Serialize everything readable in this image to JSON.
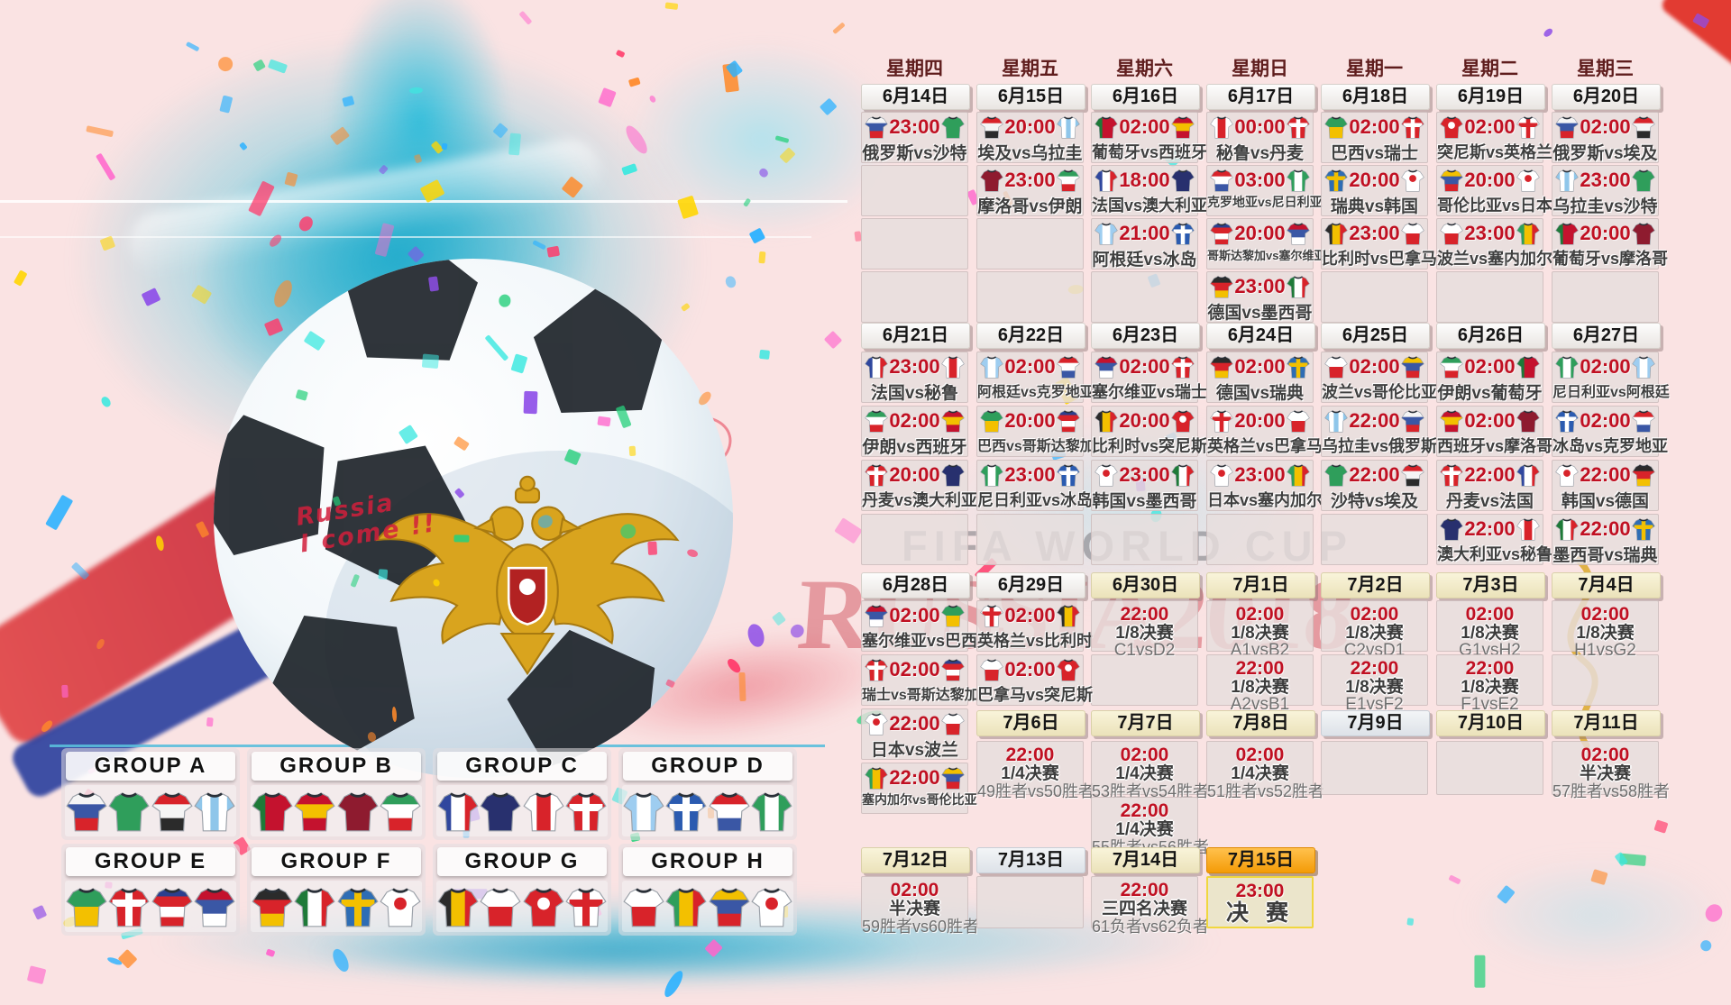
{
  "watermark": {
    "line1": "FIFA WORLD CUP",
    "line2": "RUSSIA2018"
  },
  "ball": {
    "handwriting": "Russia\nI come !!"
  },
  "weekdays": [
    "星期四",
    "星期五",
    "星期六",
    "星期日",
    "星期一",
    "星期二",
    "星期三"
  ],
  "sections": [
    {
      "dates": [
        {
          "col": 0,
          "label": "6月14日",
          "variant": "white"
        },
        {
          "col": 1,
          "label": "6月15日",
          "variant": "white"
        },
        {
          "col": 2,
          "label": "6月16日",
          "variant": "white"
        },
        {
          "col": 3,
          "label": "6月17日",
          "variant": "white"
        },
        {
          "col": 4,
          "label": "6月18日",
          "variant": "white"
        },
        {
          "col": 5,
          "label": "6月19日",
          "variant": "white"
        },
        {
          "col": 6,
          "label": "6月20日",
          "variant": "white"
        }
      ],
      "fill_rows": 4,
      "cells": [
        {
          "col": 0,
          "row": 0,
          "time": "23:00",
          "match": "俄罗斯vs沙特",
          "home": "俄罗斯",
          "away": "沙特"
        },
        {
          "col": 1,
          "row": 0,
          "time": "20:00",
          "match": "埃及vs乌拉圭",
          "home": "埃及",
          "away": "乌拉圭"
        },
        {
          "col": 1,
          "row": 1,
          "time": "23:00",
          "match": "摩洛哥vs伊朗",
          "home": "摩洛哥",
          "away": "伊朗"
        },
        {
          "col": 2,
          "row": 0,
          "time": "02:00",
          "match": "葡萄牙vs西班牙",
          "home": "葡萄牙",
          "away": "西班牙"
        },
        {
          "col": 2,
          "row": 1,
          "time": "18:00",
          "match": "法国vs澳大利亚",
          "home": "法国",
          "away": "澳大利亚"
        },
        {
          "col": 2,
          "row": 2,
          "time": "21:00",
          "match": "阿根廷vs冰岛",
          "home": "阿根廷",
          "away": "冰岛"
        },
        {
          "col": 3,
          "row": 0,
          "time": "00:00",
          "match": "秘鲁vs丹麦",
          "home": "秘鲁",
          "away": "丹麦"
        },
        {
          "col": 3,
          "row": 1,
          "time": "03:00",
          "match": "克罗地亚vs尼日利亚",
          "home": "克罗地亚",
          "away": "尼日利亚"
        },
        {
          "col": 3,
          "row": 2,
          "time": "20:00",
          "match": "哥斯达黎加vs塞尔维亚",
          "home": "哥斯达黎加",
          "away": "塞尔维亚"
        },
        {
          "col": 3,
          "row": 3,
          "time": "23:00",
          "match": "德国vs墨西哥",
          "home": "德国",
          "away": "墨西哥"
        },
        {
          "col": 4,
          "row": 0,
          "time": "02:00",
          "match": "巴西vs瑞士",
          "home": "巴西",
          "away": "瑞士"
        },
        {
          "col": 4,
          "row": 1,
          "time": "20:00",
          "match": "瑞典vs韩国",
          "home": "瑞典",
          "away": "韩国"
        },
        {
          "col": 4,
          "row": 2,
          "time": "23:00",
          "match": "比利时vs巴拿马",
          "home": "比利时",
          "away": "巴拿马"
        },
        {
          "col": 5,
          "row": 0,
          "time": "02:00",
          "match": "突尼斯vs英格兰",
          "home": "突尼斯",
          "away": "英格兰"
        },
        {
          "col": 5,
          "row": 1,
          "time": "20:00",
          "match": "哥伦比亚vs日本",
          "home": "哥伦比亚",
          "away": "日本"
        },
        {
          "col": 5,
          "row": 2,
          "time": "23:00",
          "match": "波兰vs塞内加尔",
          "home": "波兰",
          "away": "塞内加尔"
        },
        {
          "col": 6,
          "row": 0,
          "time": "02:00",
          "match": "俄罗斯vs埃及",
          "home": "俄罗斯",
          "away": "埃及"
        },
        {
          "col": 6,
          "row": 1,
          "time": "23:00",
          "match": "乌拉圭vs沙特",
          "home": "乌拉圭",
          "away": "沙特"
        },
        {
          "col": 6,
          "row": 2,
          "time": "20:00",
          "match": "葡萄牙vs摩洛哥",
          "home": "葡萄牙",
          "away": "摩洛哥"
        }
      ]
    },
    {
      "dates": [
        {
          "col": 0,
          "label": "6月21日",
          "variant": "white"
        },
        {
          "col": 1,
          "label": "6月22日",
          "variant": "white"
        },
        {
          "col": 2,
          "label": "6月23日",
          "variant": "white"
        },
        {
          "col": 3,
          "label": "6月24日",
          "variant": "white"
        },
        {
          "col": 4,
          "label": "6月25日",
          "variant": "white"
        },
        {
          "col": 5,
          "label": "6月26日",
          "variant": "white"
        },
        {
          "col": 6,
          "label": "6月27日",
          "variant": "white"
        }
      ],
      "fill_rows": 4,
      "cells": [
        {
          "col": 0,
          "row": 0,
          "time": "23:00",
          "match": "法国vs秘鲁",
          "home": "法国",
          "away": "秘鲁"
        },
        {
          "col": 0,
          "row": 1,
          "time": "02:00",
          "match": "伊朗vs西班牙",
          "home": "伊朗",
          "away": "西班牙"
        },
        {
          "col": 0,
          "row": 2,
          "time": "20:00",
          "match": "丹麦vs澳大利亚",
          "home": "丹麦",
          "away": "澳大利亚"
        },
        {
          "col": 1,
          "row": 0,
          "time": "02:00",
          "match": "阿根廷vs克罗地亚",
          "home": "阿根廷",
          "away": "克罗地亚"
        },
        {
          "col": 1,
          "row": 1,
          "time": "20:00",
          "match": "巴西vs哥斯达黎加",
          "home": "巴西",
          "away": "哥斯达黎加"
        },
        {
          "col": 1,
          "row": 2,
          "time": "23:00",
          "match": "尼日利亚vs冰岛",
          "home": "尼日利亚",
          "away": "冰岛"
        },
        {
          "col": 2,
          "row": 0,
          "time": "02:00",
          "match": "塞尔维亚vs瑞士",
          "home": "塞尔维亚",
          "away": "瑞士"
        },
        {
          "col": 2,
          "row": 1,
          "time": "20:00",
          "match": "比利时vs突尼斯",
          "home": "比利时",
          "away": "突尼斯"
        },
        {
          "col": 2,
          "row": 2,
          "time": "23:00",
          "match": "韩国vs墨西哥",
          "home": "韩国",
          "away": "墨西哥"
        },
        {
          "col": 3,
          "row": 0,
          "time": "02:00",
          "match": "德国vs瑞典",
          "home": "德国",
          "away": "瑞典"
        },
        {
          "col": 3,
          "row": 1,
          "time": "20:00",
          "match": "英格兰vs巴拿马",
          "home": "英格兰",
          "away": "巴拿马"
        },
        {
          "col": 3,
          "row": 2,
          "time": "23:00",
          "match": "日本vs塞内加尔",
          "home": "日本",
          "away": "塞内加尔"
        },
        {
          "col": 4,
          "row": 0,
          "time": "02:00",
          "match": "波兰vs哥伦比亚",
          "home": "波兰",
          "away": "哥伦比亚"
        },
        {
          "col": 4,
          "row": 1,
          "time": "22:00",
          "match": "乌拉圭vs俄罗斯",
          "home": "乌拉圭",
          "away": "俄罗斯"
        },
        {
          "col": 4,
          "row": 2,
          "time": "22:00",
          "match": "沙特vs埃及",
          "home": "沙特",
          "away": "埃及"
        },
        {
          "col": 5,
          "row": 0,
          "time": "02:00",
          "match": "伊朗vs葡萄牙",
          "home": "伊朗",
          "away": "葡萄牙"
        },
        {
          "col": 5,
          "row": 1,
          "time": "02:00",
          "match": "西班牙vs摩洛哥",
          "home": "西班牙",
          "away": "摩洛哥"
        },
        {
          "col": 5,
          "row": 2,
          "time": "22:00",
          "match": "丹麦vs法国",
          "home": "丹麦",
          "away": "法国"
        },
        {
          "col": 5,
          "row": 3,
          "time": "22:00",
          "match": "澳大利亚vs秘鲁",
          "home": "澳大利亚",
          "away": "秘鲁"
        },
        {
          "col": 6,
          "row": 0,
          "time": "02:00",
          "match": "尼日利亚vs阿根廷",
          "home": "尼日利亚",
          "away": "阿根廷"
        },
        {
          "col": 6,
          "row": 1,
          "time": "02:00",
          "match": "冰岛vs克罗地亚",
          "home": "冰岛",
          "away": "克罗地亚"
        },
        {
          "col": 6,
          "row": 2,
          "time": "22:00",
          "match": "韩国vs德国",
          "home": "韩国",
          "away": "德国"
        },
        {
          "col": 6,
          "row": 3,
          "time": "22:00",
          "match": "墨西哥vs瑞典",
          "home": "墨西哥",
          "away": "瑞典"
        }
      ]
    },
    {
      "dates": [
        {
          "col": 0,
          "label": "6月28日",
          "variant": "white"
        },
        {
          "col": 1,
          "label": "6月29日",
          "variant": "white"
        },
        {
          "col": 2,
          "label": "6月30日",
          "variant": "cream"
        },
        {
          "col": 3,
          "label": "7月1日",
          "variant": "cream"
        },
        {
          "col": 4,
          "label": "7月2日",
          "variant": "cream"
        },
        {
          "col": 5,
          "label": "7月3日",
          "variant": "cream"
        },
        {
          "col": 6,
          "label": "7月4日",
          "variant": "cream"
        }
      ],
      "fill_rows": 2,
      "cells": [
        {
          "col": 0,
          "row": 0,
          "time": "02:00",
          "match": "塞尔维亚vs巴西",
          "home": "塞尔维亚",
          "away": "巴西"
        },
        {
          "col": 0,
          "row": 1,
          "time": "02:00",
          "match": "瑞士vs哥斯达黎加",
          "home": "瑞士",
          "away": "哥斯达黎加"
        },
        {
          "col": 0,
          "row": 2,
          "time": "22:00",
          "match": "日本vs波兰",
          "home": "日本",
          "away": "波兰"
        },
        {
          "col": 0,
          "row": 3,
          "time": "22:00",
          "match": "塞内加尔vs哥伦比亚",
          "home": "塞内加尔",
          "away": "哥伦比亚"
        },
        {
          "col": 1,
          "row": 0,
          "time": "02:00",
          "match": "英格兰vs比利时",
          "home": "英格兰",
          "away": "比利时"
        },
        {
          "col": 1,
          "row": 1,
          "time": "02:00",
          "match": "巴拿马vs突尼斯",
          "home": "巴拿马",
          "away": "突尼斯"
        },
        {
          "col": 2,
          "row": 0,
          "time": "22:00",
          "stage": "1/8决赛",
          "pair": "C1vsD2"
        },
        {
          "col": 3,
          "row": 0,
          "time": "02:00",
          "stage": "1/8决赛",
          "pair": "A1vsB2"
        },
        {
          "col": 3,
          "row": 1,
          "time": "22:00",
          "stage": "1/8决赛",
          "pair": "A2vsB1"
        },
        {
          "col": 4,
          "row": 0,
          "time": "02:00",
          "stage": "1/8决赛",
          "pair": "C2vsD1"
        },
        {
          "col": 4,
          "row": 1,
          "time": "22:00",
          "stage": "1/8决赛",
          "pair": "E1vsF2"
        },
        {
          "col": 5,
          "row": 0,
          "time": "02:00",
          "stage": "1/8决赛",
          "pair": "G1vsH2"
        },
        {
          "col": 5,
          "row": 1,
          "time": "22:00",
          "stage": "1/8决赛",
          "pair": "F1vsE2"
        },
        {
          "col": 6,
          "row": 0,
          "time": "02:00",
          "stage": "1/8决赛",
          "pair": "H1vsG2"
        }
      ]
    },
    {
      "dates": [
        {
          "col": 1,
          "label": "7月6日",
          "variant": "cream"
        },
        {
          "col": 2,
          "label": "7月7日",
          "variant": "cream"
        },
        {
          "col": 3,
          "label": "7月8日",
          "variant": "cream"
        },
        {
          "col": 4,
          "label": "7月9日",
          "variant": "grey"
        },
        {
          "col": 5,
          "label": "7月10日",
          "variant": "cream"
        },
        {
          "col": 6,
          "label": "7月11日",
          "variant": "cream"
        }
      ],
      "fill_rows": 0,
      "cells": [
        {
          "col": 1,
          "row": 0,
          "time": "22:00",
          "stage": "1/4决赛",
          "pair": "49胜者vs50胜者"
        },
        {
          "col": 2,
          "row": 0,
          "time": "02:00",
          "stage": "1/4决赛",
          "pair": "53胜者vs54胜者"
        },
        {
          "col": 2,
          "row": 1,
          "time": "22:00",
          "stage": "1/4决赛",
          "pair": "55胜者vs56胜者"
        },
        {
          "col": 3,
          "row": 0,
          "time": "02:00",
          "stage": "1/4决赛",
          "pair": "51胜者vs52胜者"
        },
        {
          "col": 4,
          "row": 0,
          "empty": true
        },
        {
          "col": 5,
          "row": 0,
          "empty": true
        },
        {
          "col": 6,
          "row": 0,
          "time": "02:00",
          "stage": "半决赛",
          "pair": "57胜者vs58胜者"
        }
      ]
    },
    {
      "dates": [
        {
          "col": 0,
          "label": "7月12日",
          "variant": "cream"
        },
        {
          "col": 1,
          "label": "7月13日",
          "variant": "grey"
        },
        {
          "col": 2,
          "label": "7月14日",
          "variant": "cream"
        },
        {
          "col": 3,
          "label": "7月15日",
          "variant": "orange"
        }
      ],
      "fill_rows": 0,
      "cells": [
        {
          "col": 0,
          "row": 0,
          "time": "02:00",
          "stage": "半决赛",
          "pair": "59胜者vs60胜者"
        },
        {
          "col": 1,
          "row": 0,
          "empty": true
        },
        {
          "col": 2,
          "row": 0,
          "time": "22:00",
          "stage": "三四名决赛",
          "pair": "61负者vs62负者"
        },
        {
          "col": 3,
          "row": 0,
          "time": "23:00",
          "stage": "决 赛",
          "final": true
        }
      ]
    }
  ],
  "groups": [
    {
      "name": "GROUP A",
      "teams": [
        "俄罗斯",
        "沙特",
        "埃及",
        "乌拉圭"
      ]
    },
    {
      "name": "GROUP B",
      "teams": [
        "葡萄牙",
        "西班牙",
        "摩洛哥",
        "伊朗"
      ]
    },
    {
      "name": "GROUP C",
      "teams": [
        "法国",
        "澳大利亚",
        "秘鲁",
        "丹麦"
      ]
    },
    {
      "name": "GROUP D",
      "teams": [
        "阿根廷",
        "冰岛",
        "克罗地亚",
        "尼日利亚"
      ]
    },
    {
      "name": "GROUP E",
      "teams": [
        "巴西",
        "瑞士",
        "哥斯达黎加",
        "塞尔维亚"
      ]
    },
    {
      "name": "GROUP F",
      "teams": [
        "德国",
        "墨西哥",
        "瑞典",
        "韩国"
      ]
    },
    {
      "name": "GROUP G",
      "teams": [
        "比利时",
        "巴拿马",
        "突尼斯",
        "英格兰"
      ]
    },
    {
      "name": "GROUP H",
      "teams": [
        "波兰",
        "塞内加尔",
        "哥伦比亚",
        "日本"
      ]
    }
  ],
  "kits": {
    "俄罗斯": {
      "colors": [
        "#f5f5f5",
        "#3a57a5",
        "#d8232a"
      ]
    },
    "沙特": {
      "colors": [
        "#2f9e5b"
      ]
    },
    "埃及": {
      "colors": [
        "#d8232a",
        "#f5f5f5",
        "#2b2b2b"
      ]
    },
    "乌拉圭": {
      "colors": [
        "#8fc6ea",
        "#ffffff",
        "#8fc6ea",
        "#ffffff",
        "#8fc6ea"
      ],
      "dir": "v"
    },
    "葡萄牙": {
      "colors": [
        "#1e7a38",
        "#c4122e",
        "#c4122e"
      ],
      "dir": "v"
    },
    "西班牙": {
      "colors": [
        "#c4122e",
        "#f3c000",
        "#c4122e"
      ]
    },
    "摩洛哥": {
      "colors": [
        "#8e1b2f"
      ]
    },
    "伊朗": {
      "colors": [
        "#2f9e5b",
        "#ffffff",
        "#d8232a"
      ]
    },
    "法国": {
      "colors": [
        "#30479e",
        "#ffffff",
        "#d8232a"
      ],
      "dir": "v"
    },
    "澳大利亚": {
      "colors": [
        "#28306e"
      ]
    },
    "秘鲁": {
      "colors": [
        "#ffffff",
        "#d8232a",
        "#ffffff"
      ],
      "dir": "v"
    },
    "丹麦": {
      "colors": [
        "#d8232a"
      ],
      "cross": "#ffffff"
    },
    "阿根廷": {
      "colors": [
        "#9ecdf0",
        "#ffffff",
        "#9ecdf0"
      ],
      "dir": "v"
    },
    "冰岛": {
      "colors": [
        "#2b5bb0"
      ],
      "cross": "#ffffff"
    },
    "克罗地亚": {
      "colors": [
        "#d8232a",
        "#ffffff",
        "#3a57a5"
      ]
    },
    "尼日利亚": {
      "colors": [
        "#2f9e5b",
        "#ffffff",
        "#2f9e5b"
      ],
      "dir": "v"
    },
    "哥斯达黎加": {
      "colors": [
        "#2b3f8e",
        "#d8232a",
        "#ffffff",
        "#d8232a"
      ]
    },
    "塞尔维亚": {
      "colors": [
        "#c4122e",
        "#3a57a5",
        "#ffffff"
      ]
    },
    "德国": {
      "colors": [
        "#2b2b2b",
        "#d8232a",
        "#f3c000"
      ]
    },
    "墨西哥": {
      "colors": [
        "#1e7a38",
        "#ffffff",
        "#d8232a"
      ],
      "dir": "v"
    },
    "巴西": {
      "colors": [
        "#2f9e5b",
        "#f3c000"
      ]
    },
    "瑞士": {
      "colors": [
        "#d8232a"
      ],
      "cross": "#ffffff"
    },
    "瑞典": {
      "colors": [
        "#2e6db4"
      ],
      "cross": "#f3c000"
    },
    "韩国": {
      "colors": [
        "#ffffff"
      ],
      "dot": "#d8232a"
    },
    "比利时": {
      "colors": [
        "#2b2b2b",
        "#f3c000",
        "#d8232a"
      ],
      "dir": "v"
    },
    "巴拿马": {
      "colors": [
        "#ffffff",
        "#d8232a"
      ]
    },
    "突尼斯": {
      "colors": [
        "#d8232a"
      ],
      "dot": "#ffffff"
    },
    "英格兰": {
      "colors": [
        "#ffffff"
      ],
      "cross": "#d8232a"
    },
    "波兰": {
      "colors": [
        "#ffffff",
        "#d8232a"
      ]
    },
    "塞内加尔": {
      "colors": [
        "#2f9e5b",
        "#f3c000",
        "#d8232a"
      ],
      "dir": "v"
    },
    "哥伦比亚": {
      "colors": [
        "#f3c000",
        "#3a57a5",
        "#d8232a"
      ]
    },
    "日本": {
      "colors": [
        "#ffffff"
      ],
      "dot": "#d8232a"
    }
  },
  "palette": {
    "background_pink": "#fae3e3",
    "splash_cyan": "#49c8e0",
    "time_red": "#c01022",
    "weekday_text": "#5f1d1d",
    "final_border_yellow": "#f0d73e",
    "date_orange": "#f49b07",
    "confetti": [
      "#ff3b6b",
      "#ffd500",
      "#27d07c",
      "#2bb1ff",
      "#8d4de8",
      "#ff8a2a",
      "#ff66cc",
      "#3be8e0"
    ]
  }
}
